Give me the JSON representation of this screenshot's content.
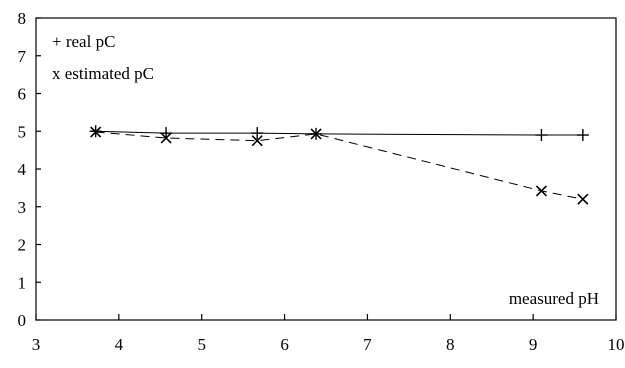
{
  "chart_data": {
    "type": "line",
    "title": "",
    "xlabel": "",
    "ylabel": "",
    "xlim": [
      3,
      10
    ],
    "ylim": [
      0,
      8
    ],
    "x_ticks": [
      3,
      4,
      5,
      6,
      7,
      8,
      9,
      10
    ],
    "y_ticks": [
      0,
      1,
      2,
      3,
      4,
      5,
      6,
      7,
      8
    ],
    "grid": false,
    "legend": {
      "placement": "top-left",
      "entries": [
        "+ real pC",
        "x estimated pC"
      ]
    },
    "annotation": "measured pH",
    "series": [
      {
        "name": "real pC",
        "marker": "plus",
        "line": "solid",
        "points": [
          [
            3.72,
            5.0
          ],
          [
            4.57,
            4.95
          ],
          [
            5.67,
            4.95
          ],
          [
            6.38,
            4.93
          ],
          [
            9.1,
            4.9
          ],
          [
            9.6,
            4.9
          ]
        ]
      },
      {
        "name": "estimated pC",
        "marker": "x",
        "line": "dashed",
        "points": [
          [
            3.72,
            4.98
          ],
          [
            4.57,
            4.82
          ],
          [
            5.67,
            4.75
          ],
          [
            6.38,
            4.93
          ],
          [
            9.1,
            3.42
          ],
          [
            9.6,
            3.2
          ]
        ]
      }
    ]
  }
}
